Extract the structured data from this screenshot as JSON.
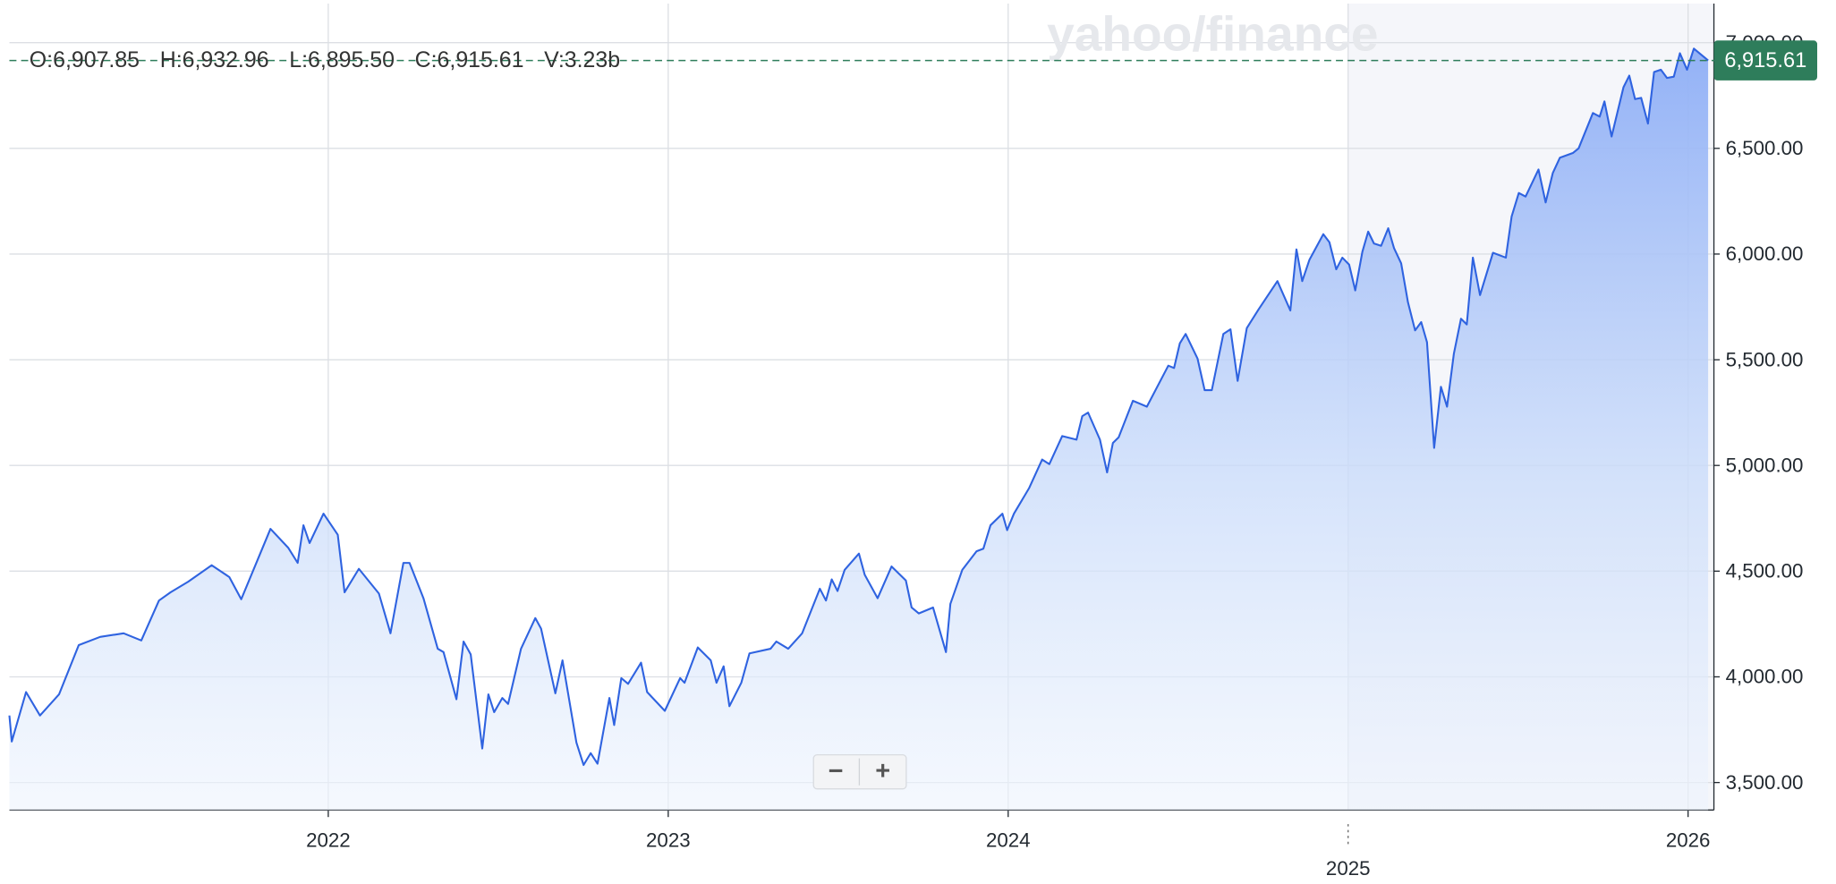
{
  "chart_data": {
    "type": "line",
    "color": "#2f63e0",
    "ohlc_labels": [
      "O:6,907.85",
      "H:6,932.96",
      "L:6,895.50",
      "C:6,915.61",
      "V:3.23b"
    ],
    "watermark": "yahoo/finance",
    "zoom_buttons": [
      "−",
      "+"
    ],
    "last_value": 6915.61,
    "last_value_label": "6,915.61",
    "last_value_color": "#2e7d5b",
    "xlim": [
      2021.062,
      2026.076
    ],
    "xticks": [
      2022,
      2023,
      2024,
      2025,
      2026
    ],
    "ylim": [
      3370,
      7185
    ],
    "yticks": [
      {
        "value": 3500,
        "label": "3,500.00"
      },
      {
        "value": 4000,
        "label": "4,000.00"
      },
      {
        "value": 4500,
        "label": "4,500.00"
      },
      {
        "value": 5000,
        "label": "5,000.00"
      },
      {
        "value": 5500,
        "label": "5,500.00"
      },
      {
        "value": 6000,
        "label": "6,000.00"
      },
      {
        "value": 6500,
        "label": "6,500.00"
      },
      {
        "value": 7000,
        "label": "7,000.00"
      }
    ],
    "grid": true,
    "x": [
      2021.062,
      2021.069,
      2021.111,
      2021.152,
      2021.208,
      2021.266,
      2021.329,
      2021.398,
      2021.45,
      2021.502,
      2021.536,
      2021.588,
      2021.657,
      2021.709,
      2021.744,
      2021.83,
      2021.882,
      2021.91,
      2021.927,
      2021.945,
      2021.986,
      2022.028,
      2022.048,
      2022.09,
      2022.149,
      2022.183,
      2022.221,
      2022.239,
      2022.28,
      2022.322,
      2022.339,
      2022.377,
      2022.398,
      2022.419,
      2022.453,
      2022.471,
      2022.488,
      2022.512,
      2022.529,
      2022.567,
      2022.609,
      2022.626,
      2022.668,
      2022.689,
      2022.73,
      2022.751,
      2022.772,
      2022.792,
      2022.827,
      2022.841,
      2022.862,
      2022.882,
      2022.92,
      2022.938,
      2022.99,
      2023.035,
      2023.048,
      2023.087,
      2023.125,
      2023.142,
      2023.163,
      2023.18,
      2023.215,
      2023.239,
      2023.301,
      2023.318,
      2023.353,
      2023.394,
      2023.446,
      2023.464,
      2023.481,
      2023.498,
      2023.519,
      2023.561,
      2023.578,
      2023.616,
      2023.657,
      2023.699,
      2023.716,
      2023.737,
      2023.779,
      2023.817,
      2023.83,
      2023.865,
      2023.907,
      2023.927,
      2023.948,
      2023.983,
      2023.997,
      2024.017,
      2024.062,
      2024.1,
      2024.121,
      2024.159,
      2024.201,
      2024.218,
      2024.235,
      2024.27,
      2024.291,
      2024.308,
      2024.325,
      2024.367,
      2024.408,
      2024.471,
      2024.488,
      2024.505,
      2024.522,
      2024.557,
      2024.578,
      2024.599,
      2024.633,
      2024.654,
      2024.675,
      2024.702,
      2024.737,
      2024.792,
      2024.83,
      2024.848,
      2024.865,
      2024.886,
      2024.927,
      2024.945,
      2024.965,
      2024.983,
      2025.003,
      2025.021,
      2025.042,
      2025.059,
      2025.076,
      2025.097,
      2025.118,
      2025.135,
      2025.156,
      2025.176,
      2025.197,
      2025.215,
      2025.232,
      2025.253,
      2025.273,
      2025.291,
      2025.311,
      2025.332,
      2025.349,
      2025.367,
      2025.388,
      2025.426,
      2025.464,
      2025.481,
      2025.502,
      2025.522,
      2025.56,
      2025.581,
      2025.602,
      2025.623,
      2025.661,
      2025.678,
      2025.72,
      2025.74,
      2025.754,
      2025.775,
      2025.81,
      2025.827,
      2025.844,
      2025.862,
      2025.882,
      2025.9,
      2025.92,
      2025.938,
      2025.958,
      2025.976,
      2025.997,
      2026.017,
      2026.038,
      2026.059
    ],
    "values": [
      3817,
      3694,
      3928,
      3817,
      3917,
      4150,
      4189,
      4206,
      4172,
      4361,
      4400,
      4450,
      4528,
      4472,
      4367,
      4700,
      4611,
      4539,
      4717,
      4633,
      4772,
      4672,
      4400,
      4511,
      4394,
      4206,
      4539,
      4539,
      4372,
      4133,
      4117,
      3894,
      4167,
      4106,
      3661,
      3917,
      3833,
      3900,
      3872,
      4133,
      4278,
      4228,
      3922,
      4078,
      3689,
      3583,
      3639,
      3589,
      3900,
      3772,
      3994,
      3967,
      4067,
      3928,
      3839,
      3994,
      3972,
      4139,
      4078,
      3972,
      4050,
      3861,
      3972,
      4111,
      4133,
      4167,
      4133,
      4206,
      4417,
      4361,
      4461,
      4406,
      4506,
      4583,
      4483,
      4372,
      4522,
      4456,
      4328,
      4300,
      4328,
      4117,
      4345,
      4506,
      4594,
      4606,
      4717,
      4772,
      4694,
      4772,
      4894,
      5028,
      5006,
      5139,
      5122,
      5233,
      5250,
      5122,
      4967,
      5106,
      5133,
      5306,
      5278,
      5472,
      5461,
      5578,
      5622,
      5506,
      5356,
      5356,
      5622,
      5644,
      5400,
      5650,
      5739,
      5872,
      5733,
      6022,
      5872,
      5972,
      6094,
      6056,
      5928,
      5983,
      5950,
      5828,
      6011,
      6106,
      6050,
      6039,
      6122,
      6028,
      5956,
      5772,
      5639,
      5678,
      5583,
      5083,
      5372,
      5278,
      5528,
      5694,
      5667,
      5983,
      5806,
      6006,
      5983,
      6178,
      6289,
      6272,
      6400,
      6244,
      6383,
      6456,
      6478,
      6500,
      6667,
      6650,
      6722,
      6556,
      6789,
      6844,
      6733,
      6739,
      6617,
      6861,
      6872,
      6833,
      6839,
      6950,
      6872,
      6972,
      6944,
      6915.61
    ]
  }
}
